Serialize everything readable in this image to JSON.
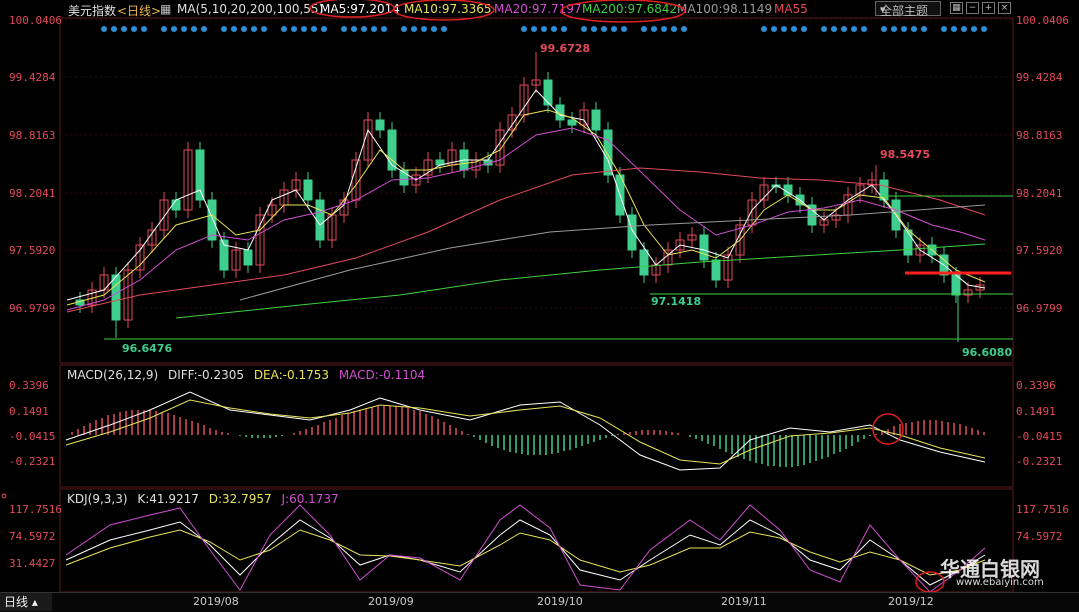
{
  "header": {
    "title": "美元指数",
    "period": "<日线>",
    "ma_params": "MA(5,10,20,200,100,55)",
    "ma_values": [
      {
        "label": "MA5:97.2014",
        "color": "#ffffff"
      },
      {
        "label": "MA10:97.3365",
        "color": "#e8e35a"
      },
      {
        "label": "MA20:97.7197",
        "color": "#d14fd1"
      },
      {
        "label": "MA200:97.6842",
        "color": "#3fd13f"
      },
      {
        "label": "MA100:98.1149",
        "color": "#9a9a9a"
      },
      {
        "label": "MA55",
        "color": "#e34a5c"
      }
    ],
    "theme_button": "全部主题",
    "toolbar_icons": [
      "grid-icon",
      "minus-icon",
      "plus-icon",
      "close-icon"
    ]
  },
  "price_axis": {
    "labels": [
      "100.0406",
      "99.4284",
      "98.8163",
      "98.2041",
      "97.5920",
      "96.9799"
    ]
  },
  "annotations": {
    "high1": "99.6728",
    "high2": "98.5475",
    "low_left": "96.6476",
    "low_mid": "97.1418",
    "low_right": "96.6080"
  },
  "macd": {
    "name": "MACD(26,12,9)",
    "diff": "DIFF:-0.2305",
    "dea": "DEA:-0.1753",
    "macd": "MACD:-0.1104",
    "axis_labels": [
      "0.3396",
      "0.1491",
      "-0.0415",
      "-0.2321"
    ]
  },
  "kdj": {
    "name": "KDJ(9,3,3)",
    "k": "K:41.9217",
    "d": "D:32.7957",
    "j": "J:60.1737",
    "axis_labels": [
      "117.7516",
      "74.5972",
      "31.4427"
    ]
  },
  "x_axis": {
    "labels": [
      "2019/08",
      "2019/09",
      "2019/10",
      "2019/11",
      "2019/12"
    ]
  },
  "footer": {
    "tab": "日线"
  },
  "watermark": {
    "brand": "华通白银网",
    "url": "www.ebaiyin.com"
  },
  "colors": {
    "up": "#e34a5c",
    "down": "#3ecf8e",
    "highlight_ellipse": "#e02020",
    "signal_dot": "#2a8fd6"
  }
}
